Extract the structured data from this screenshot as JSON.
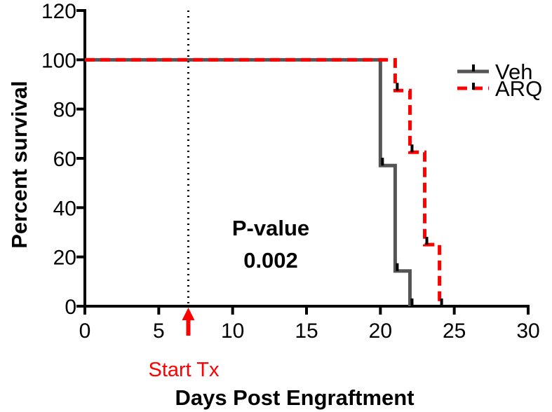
{
  "chart_data": {
    "type": "line",
    "subtype": "kaplan-meier survival step plot",
    "title": "",
    "xlabel": "Days Post Engraftment",
    "ylabel": "Percent survival",
    "xlim": [
      0,
      30
    ],
    "ylim": [
      0,
      120
    ],
    "xticks": [
      0,
      5,
      10,
      15,
      20,
      25,
      30
    ],
    "yticks": [
      0,
      20,
      40,
      60,
      80,
      100,
      120
    ],
    "grid": false,
    "legend_position": "top-right",
    "series": [
      {
        "name": "Veh",
        "color": "#555555",
        "style": "solid",
        "steps": [
          [
            0,
            100
          ],
          [
            20,
            57.1
          ],
          [
            21,
            14.3
          ],
          [
            22,
            0
          ]
        ],
        "end_x": 22,
        "censor_marks": [
          [
            20,
            57.1
          ],
          [
            21,
            14.3
          ],
          [
            22,
            0
          ]
        ]
      },
      {
        "name": "ARQ",
        "color": "#ff0000",
        "style": "dashed",
        "steps": [
          [
            0,
            100
          ],
          [
            21,
            87.5
          ],
          [
            22,
            62.5
          ],
          [
            23,
            25
          ],
          [
            24,
            0
          ]
        ],
        "end_x": 24,
        "censor_marks": [
          [
            21,
            87.5
          ],
          [
            22,
            62.5
          ],
          [
            23,
            25
          ],
          [
            24,
            0
          ]
        ]
      }
    ],
    "annotations": {
      "pvalue_label": "P-value",
      "pvalue": "0.002",
      "treatment_start_label": "Start Tx",
      "treatment_start_x": 7,
      "treatment_color": "#ff0000"
    }
  }
}
